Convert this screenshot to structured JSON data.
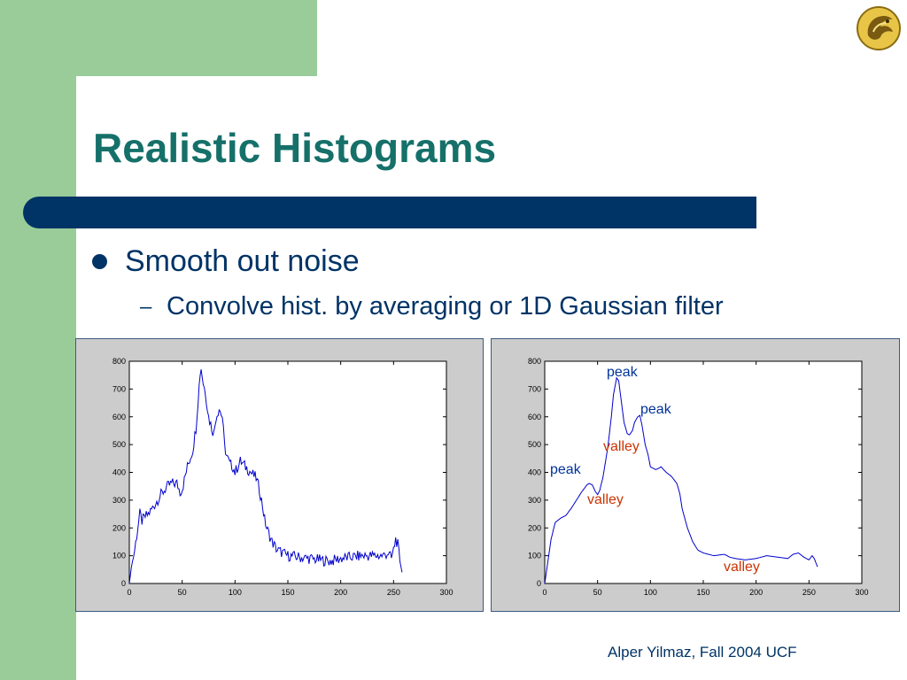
{
  "slide": {
    "title": "Realistic Histograms",
    "bullet": "Smooth out noise",
    "sub_bullet_marker": "–",
    "sub_bullet": "Convolve hist. by averaging or 1D Gaussian filter",
    "footer": "Alper Yilmaz, Fall 2004 UCF"
  },
  "colors": {
    "green": "#99cc99",
    "title": "#16706a",
    "navy": "#003366",
    "line": "#0000cc",
    "annotation_peak": "#003399",
    "annotation_valley": "#cc3300"
  },
  "chart_data": [
    {
      "type": "line",
      "title": "",
      "xlabel": "",
      "ylabel": "",
      "xlim": [
        0,
        300
      ],
      "ylim": [
        0,
        800
      ],
      "xticks": [
        0,
        50,
        100,
        150,
        200,
        250,
        300
      ],
      "yticks": [
        0,
        100,
        200,
        300,
        400,
        500,
        600,
        700,
        800
      ],
      "xtick_labels": [
        "0",
        "50",
        "100",
        "150",
        "200",
        "250",
        "300"
      ],
      "ytick_labels": [
        "0",
        "100",
        "200",
        "300",
        "400",
        "500",
        "600",
        "700",
        "800"
      ],
      "grid": false,
      "legend": "none",
      "series": [
        {
          "noisy": true,
          "x": [
            0,
            2,
            5,
            8,
            10,
            12,
            15,
            18,
            20,
            25,
            30,
            35,
            40,
            45,
            48,
            50,
            55,
            60,
            63,
            65,
            67,
            68,
            70,
            72,
            75,
            78,
            80,
            82,
            85,
            88,
            90,
            92,
            95,
            98,
            100,
            105,
            110,
            115,
            120,
            123,
            126,
            128,
            130,
            135,
            140,
            150,
            160,
            170,
            180,
            190,
            200,
            210,
            220,
            230,
            240,
            245,
            248,
            250,
            252,
            254,
            256,
            258
          ],
          "y": [
            0,
            60,
            120,
            200,
            250,
            225,
            240,
            250,
            260,
            290,
            320,
            345,
            360,
            360,
            330,
            340,
            420,
            480,
            560,
            660,
            760,
            775,
            720,
            690,
            600,
            560,
            540,
            600,
            630,
            600,
            500,
            460,
            430,
            420,
            400,
            440,
            420,
            400,
            380,
            340,
            280,
            230,
            200,
            150,
            120,
            100,
            95,
            90,
            85,
            80,
            90,
            95,
            100,
            100,
            100,
            110,
            90,
            120,
            160,
            140,
            80,
            40
          ]
        }
      ]
    },
    {
      "type": "line",
      "title": "",
      "xlabel": "",
      "ylabel": "",
      "xlim": [
        0,
        300
      ],
      "ylim": [
        0,
        800
      ],
      "xticks": [
        0,
        50,
        100,
        150,
        200,
        250,
        300
      ],
      "yticks": [
        0,
        100,
        200,
        300,
        400,
        500,
        600,
        700,
        800
      ],
      "xtick_labels": [
        "0",
        "50",
        "100",
        "150",
        "200",
        "250",
        "300"
      ],
      "ytick_labels": [
        "0",
        "100",
        "200",
        "300",
        "400",
        "500",
        "600",
        "700",
        "800"
      ],
      "grid": false,
      "legend": "none",
      "series": [
        {
          "noisy": false,
          "x": [
            0,
            3,
            6,
            10,
            15,
            20,
            25,
            30,
            35,
            40,
            42,
            45,
            48,
            50,
            52,
            55,
            58,
            60,
            63,
            65,
            68,
            70,
            72,
            75,
            78,
            80,
            83,
            85,
            88,
            90,
            92,
            95,
            98,
            100,
            105,
            108,
            110,
            115,
            120,
            125,
            128,
            130,
            135,
            140,
            145,
            150,
            160,
            170,
            175,
            180,
            190,
            200,
            210,
            220,
            230,
            235,
            240,
            245,
            250,
            253,
            255,
            258
          ],
          "y": [
            0,
            80,
            160,
            220,
            235,
            245,
            270,
            300,
            330,
            355,
            360,
            355,
            330,
            320,
            335,
            380,
            450,
            500,
            600,
            680,
            740,
            730,
            670,
            580,
            540,
            535,
            550,
            580,
            600,
            605,
            570,
            500,
            460,
            420,
            410,
            415,
            420,
            400,
            385,
            360,
            320,
            270,
            200,
            150,
            120,
            110,
            100,
            105,
            95,
            90,
            85,
            90,
            100,
            95,
            90,
            105,
            110,
            95,
            85,
            100,
            90,
            60
          ]
        }
      ],
      "annotations": [
        {
          "text": "peak",
          "kind": "peak"
        },
        {
          "text": "peak",
          "kind": "peak"
        },
        {
          "text": "valley",
          "kind": "valley"
        },
        {
          "text": "peak",
          "kind": "peak"
        },
        {
          "text": "valley",
          "kind": "valley"
        },
        {
          "text": "valley",
          "kind": "valley"
        }
      ]
    }
  ]
}
